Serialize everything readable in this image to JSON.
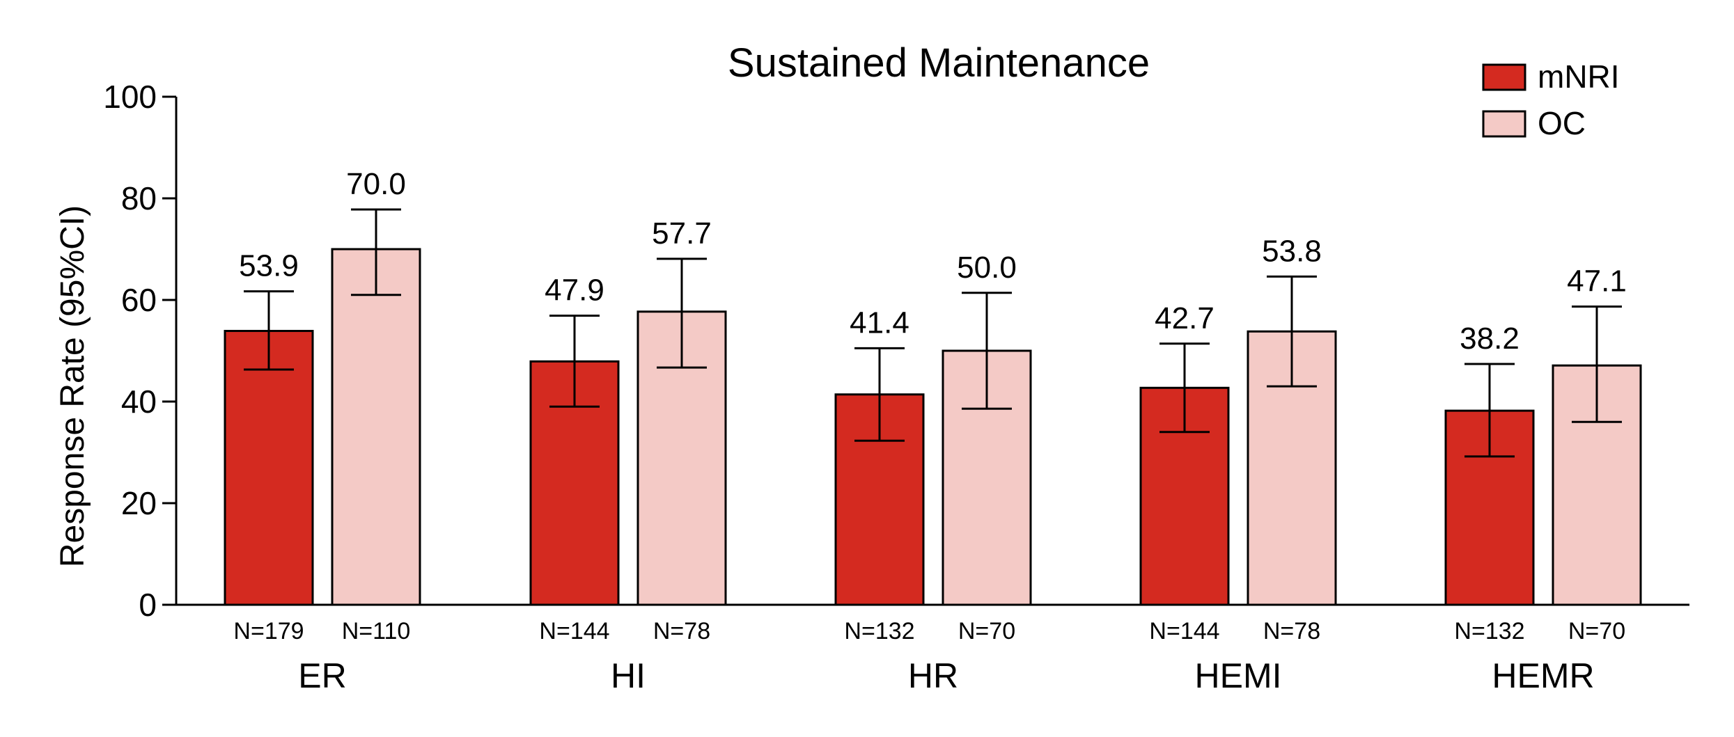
{
  "chart_data": {
    "type": "bar",
    "title": "Sustained Maintenance",
    "xlabel": "",
    "ylabel": "Response Rate (95%CI)",
    "ylim": [
      0,
      100
    ],
    "yticks": [
      0,
      20,
      40,
      60,
      80,
      100
    ],
    "grid": false,
    "legend_position": "top-right",
    "categories": [
      "ER",
      "HI",
      "HR",
      "HEMI",
      "HEMR"
    ],
    "series": [
      {
        "name": "mNRI",
        "color": "#d42a20",
        "values": [
          53.9,
          47.9,
          41.4,
          42.7,
          38.2
        ],
        "value_labels": [
          "53.9",
          "47.9",
          "41.4",
          "42.7",
          "38.2"
        ],
        "ci_lower": [
          46.3,
          39.0,
          32.3,
          34.0,
          29.2
        ],
        "ci_upper": [
          61.7,
          56.9,
          50.5,
          51.4,
          47.4
        ],
        "n_labels": [
          "N=179",
          "N=144",
          "N=132",
          "N=144",
          "N=132"
        ]
      },
      {
        "name": "OC",
        "color": "#f4cac6",
        "values": [
          70.0,
          57.7,
          50.0,
          53.8,
          47.1
        ],
        "value_labels": [
          "70.0",
          "57.7",
          "50.0",
          "53.8",
          "47.1"
        ],
        "ci_lower": [
          61.0,
          46.7,
          38.6,
          43.0,
          36.0
        ],
        "ci_upper": [
          77.8,
          68.1,
          61.4,
          64.6,
          58.7
        ],
        "n_labels": [
          "N=110",
          "N=78",
          "N=70",
          "N=78",
          "N=70"
        ]
      }
    ]
  }
}
